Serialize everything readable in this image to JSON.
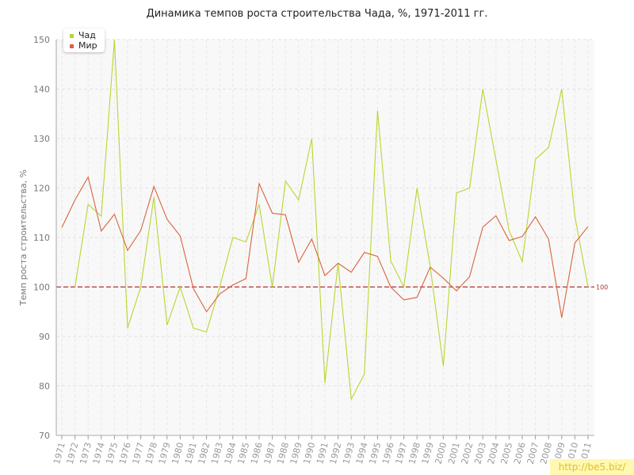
{
  "watermark": "http://be5.biz/",
  "colors": {
    "chad": "#b9d630",
    "world": "#d9643c",
    "reference": "#b03030"
  },
  "chart_data": {
    "type": "line",
    "title": "Динамика темпов роста строительства Чада, %, 1971-2011 гг.",
    "xlabel": "",
    "ylabel": "Темп роста строительства, %",
    "ylim": [
      70,
      150
    ],
    "yticks": [
      70,
      80,
      90,
      100,
      110,
      120,
      130,
      140,
      150
    ],
    "grid": true,
    "legend_position": "top-left",
    "categories": [
      "1971",
      "1972",
      "1973",
      "1974",
      "1975",
      "1976",
      "1977",
      "1978",
      "1979",
      "1980",
      "1981",
      "1982",
      "1983",
      "1984",
      "1985",
      "1986",
      "1987",
      "1988",
      "1989",
      "1990",
      "1991",
      "1992",
      "1993",
      "1994",
      "1995",
      "1996",
      "1997",
      "1998",
      "1999",
      "2000",
      "2001",
      "2002",
      "2003",
      "2004",
      "2005",
      "2006",
      "2007",
      "2008",
      "2009",
      "2010",
      "2011"
    ],
    "series": [
      {
        "name": "Чад",
        "values": [
          null,
          100,
          116.7,
          114.3,
          150,
          91.7,
          100,
          118.2,
          92.3,
          100,
          91.7,
          90.9,
          100,
          110,
          109.1,
          116.7,
          100,
          121.4,
          117.6,
          130,
          80.6,
          104.8,
          77.3,
          82.4,
          135.7,
          105.3,
          100,
          120,
          104.2,
          84,
          119,
          120,
          140,
          125.7,
          111.4,
          105.1,
          125.8,
          128.2,
          140,
          114.3,
          100
        ]
      },
      {
        "name": "Мир",
        "values": [
          112,
          117.6,
          122.2,
          111.3,
          114.7,
          107.4,
          111.4,
          120.3,
          113.7,
          110.3,
          99.7,
          95,
          98.6,
          100.4,
          101.7,
          120.9,
          114.9,
          114.6,
          105,
          109.7,
          102.3,
          104.8,
          103,
          107,
          106.2,
          100,
          97.4,
          97.9,
          104,
          101.8,
          99.2,
          102.1,
          112.1,
          114.4,
          109.4,
          110.2,
          114.2,
          109.7,
          93.8,
          108.9,
          112.2
        ]
      }
    ],
    "reference_line": {
      "value": 100,
      "label": "100"
    }
  }
}
